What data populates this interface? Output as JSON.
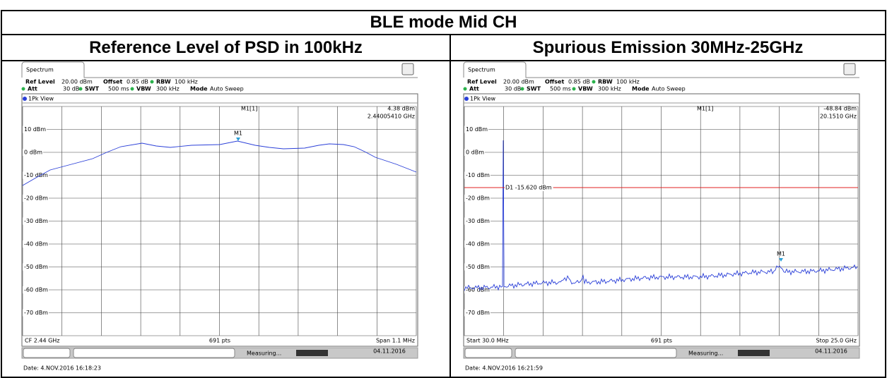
{
  "title": "BLE mode Mid CH",
  "columns": [
    {
      "heading": "Reference Level of PSD in 100kHz",
      "screen": {
        "tab": "Spectrum",
        "ref_level_label": "Ref Level",
        "ref_level": "20.00 dBm",
        "offset_label": "Offset",
        "offset": "0.85 dB",
        "rbw_label": "RBW",
        "rbw": "100 kHz",
        "att_label": "Att",
        "att": "30 dB",
        "swt_label": "SWT",
        "swt": "500 ms",
        "vbw_label": "VBW",
        "vbw": "300 kHz",
        "mode_label": "Mode",
        "mode": "Auto Sweep",
        "view": "1Pk View",
        "marker_name": "M1[1]",
        "marker_level": "4.38 dBm",
        "marker_freq": "2.44005410 GHz",
        "marker_tag": "M1",
        "y_labels": [
          "10 dBm",
          "0 dBm",
          "-10 dBm",
          "-20 dBm",
          "-30 dBm",
          "-40 dBm",
          "-50 dBm",
          "-60 dBm",
          "-70 dBm"
        ],
        "footer_left": "CF 2.44 GHz",
        "footer_center": "691 pts",
        "footer_right": "Span 1.1 MHz",
        "status_text": "Measuring...",
        "status_date": "04.11.2016",
        "date": "Date: 4.NOV.2016 16:18:23"
      }
    },
    {
      "heading": "Spurious Emission 30MHz-25GHz",
      "screen": {
        "tab": "Spectrum",
        "ref_level_label": "Ref Level",
        "ref_level": "20.00 dBm",
        "offset_label": "Offset",
        "offset": "0.85 dB",
        "rbw_label": "RBW",
        "rbw": "100 kHz",
        "att_label": "Att",
        "att": "30 dB",
        "swt_label": "SWT",
        "swt": "500 ms",
        "vbw_label": "VBW",
        "vbw": "300 kHz",
        "mode_label": "Mode",
        "mode": "Auto Sweep",
        "view": "1Pk View",
        "marker_name": "M1[1]",
        "marker_level": "-48.84 dBm",
        "marker_freq": "20.1510 GHz",
        "marker_tag": "M1",
        "y_labels": [
          "10 dBm",
          "0 dBm",
          "-10 dBm",
          "-20 dBm",
          "-30 dBm",
          "-40 dBm",
          "-50 dBm",
          "-60 dBm",
          "-70 dBm"
        ],
        "display_line": "D1 -15.620 dBm",
        "footer_left": "Start 30.0 MHz",
        "footer_center": "691 pts",
        "footer_right": "Stop 25.0 GHz",
        "status_text": "Measuring...",
        "status_date": "04.11.2016",
        "date": "Date: 4.NOV.2016 16:21:59"
      }
    }
  ]
}
